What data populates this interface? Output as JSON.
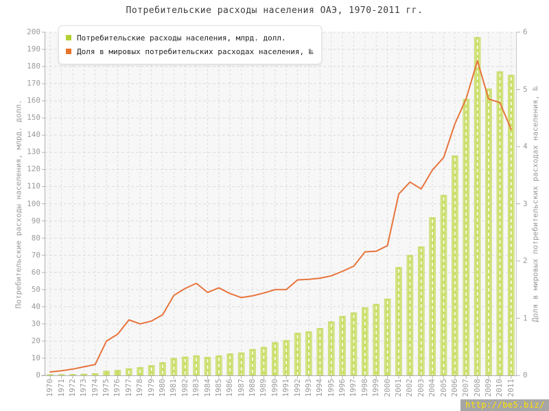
{
  "title": "Потребительские расходы населения ОАЭ, 1970-2011 гг.",
  "watermark": "http://be5.biz/",
  "legend": [
    {
      "label": "Потребительские расходы населения, млрд. долл.",
      "color": "#b2d133"
    },
    {
      "label": "Доля в мировых потребительских расходах населения, ‰",
      "color": "#e8732c"
    }
  ],
  "colors": {
    "bar_main": "#c9de66",
    "bar_edge_light": "#e0ebaa",
    "bar_border": "#bdd456",
    "line": "#e8733b",
    "grid": "#dcdcdc",
    "axis": "#b0b0b0",
    "plot_bg": "#f7f7f7",
    "axis_text": "#9a9a9a"
  },
  "chart_data": {
    "type": "bar",
    "title": "Потребительские расходы населения ОАЭ, 1970-2011 гг.",
    "grid": true,
    "legend_position": "top-left",
    "categories": [
      1970,
      1971,
      1972,
      1973,
      1974,
      1975,
      1976,
      1977,
      1978,
      1979,
      1980,
      1981,
      1982,
      1983,
      1984,
      1985,
      1986,
      1987,
      1988,
      1989,
      1990,
      1991,
      1992,
      1993,
      1994,
      1995,
      1996,
      1997,
      1998,
      1999,
      2000,
      2001,
      2002,
      2003,
      2004,
      2005,
      2006,
      2007,
      2008,
      2009,
      2010,
      2011
    ],
    "series": [
      {
        "name": "Потребительские расходы населения, млрд. долл.",
        "type": "bar",
        "axis": "left",
        "values": [
          0.3,
          0.5,
          0.6,
          0.8,
          1.1,
          2.5,
          3,
          4,
          4.6,
          5.8,
          7.5,
          10,
          10.8,
          11.5,
          10.6,
          11.5,
          12.6,
          13.2,
          15.2,
          16.4,
          19.2,
          20.4,
          24.7,
          25.5,
          27.4,
          31.3,
          34.5,
          36.5,
          39.5,
          41.5,
          44.6,
          63,
          70,
          75,
          92,
          105,
          128,
          161,
          197,
          167,
          177,
          175
        ]
      },
      {
        "name": "Доля в мировых потребительских расходах населения, ‰",
        "type": "line",
        "axis": "right",
        "values": [
          0.06,
          0.08,
          0.11,
          0.15,
          0.19,
          0.6,
          0.72,
          0.97,
          0.9,
          0.95,
          1.06,
          1.4,
          1.52,
          1.61,
          1.45,
          1.53,
          1.43,
          1.36,
          1.39,
          1.44,
          1.5,
          1.5,
          1.67,
          1.68,
          1.7,
          1.74,
          1.82,
          1.91,
          2.16,
          2.17,
          2.27,
          3.17,
          3.38,
          3.26,
          3.59,
          3.81,
          4.4,
          4.84,
          5.5,
          4.83,
          4.77,
          4.3
        ]
      }
    ],
    "left_axis": {
      "title": "Потребительские расходы населения, млрд. долл.",
      "min": 0,
      "max": 200,
      "tick_step": 10
    },
    "right_axis": {
      "title": "Доля в мировых потребительских расходах населения, ‰",
      "min": 0,
      "max": 6,
      "tick_step": 1
    }
  }
}
